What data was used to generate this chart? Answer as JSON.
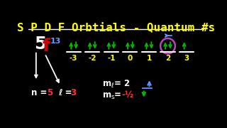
{
  "bg_color": "#000000",
  "title_text": "S P D F Orbtials - Quantum #s",
  "title_color": "#FFFF00",
  "title_fontsize": 11.5,
  "orbital_5_color": "#FFFFFF",
  "orbital_f_color": "#CC0000",
  "orbital_superscript": "13",
  "orbital_superscript_color": "#6699FF",
  "ml_values": [
    -3,
    -2,
    -1,
    0,
    1,
    2,
    3
  ],
  "ml_color": "#FFFF00",
  "arrow_color": "#00BB00",
  "circle_ml_index": 5,
  "circle_color": "#BB44BB",
  "blue_arrow_color": "#5599FF",
  "n_value_color": "#FF3333",
  "l_value_color": "#FF3333",
  "ms_value_color": "#FF3333",
  "white_color": "#FFFFFF",
  "green_color": "#00BB00",
  "line_color": "#FFFFFF",
  "bar_color": "#FFFFFF"
}
